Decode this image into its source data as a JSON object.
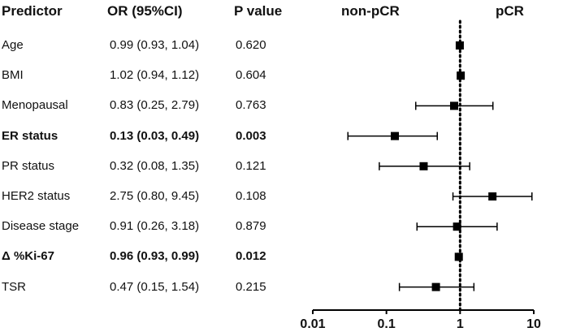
{
  "headers": {
    "predictor": "Predictor",
    "or": "OR (95%CI)",
    "p": "P value",
    "left_label": "non-pCR",
    "right_label": "pCR"
  },
  "chart_data": {
    "type": "scatter",
    "subtype": "forest-plot",
    "x_scale": "log",
    "xlim": [
      0.01,
      10
    ],
    "reference_line": 1,
    "reference_line_style": "dotted",
    "x_ticks": [
      0.01,
      0.1,
      1,
      10
    ],
    "x_tick_labels": [
      "0.01",
      "0.1",
      "1",
      "10"
    ],
    "grid": false,
    "rows": [
      {
        "predictor": "Age",
        "or_text": "0.99 (0.93, 1.04)",
        "p_text": "0.620",
        "or": 0.99,
        "lo": 0.93,
        "hi": 1.04,
        "bold": false
      },
      {
        "predictor": "BMI",
        "or_text": "1.02 (0.94, 1.12)",
        "p_text": "0.604",
        "or": 1.02,
        "lo": 0.94,
        "hi": 1.12,
        "bold": false
      },
      {
        "predictor": "Menopausal",
        "or_text": "0.83 (0.25, 2.79)",
        "p_text": "0.763",
        "or": 0.83,
        "lo": 0.25,
        "hi": 2.79,
        "bold": false
      },
      {
        "predictor": "ER status",
        "or_text": "0.13 (0.03, 0.49)",
        "p_text": "0.003",
        "or": 0.13,
        "lo": 0.03,
        "hi": 0.49,
        "bold": true
      },
      {
        "predictor": "PR status",
        "or_text": "0.32 (0.08, 1.35)",
        "p_text": "0.121",
        "or": 0.32,
        "lo": 0.08,
        "hi": 1.35,
        "bold": false
      },
      {
        "predictor": "HER2 status",
        "or_text": "2.75 (0.80, 9.45)",
        "p_text": "0.108",
        "or": 2.75,
        "lo": 0.8,
        "hi": 9.45,
        "bold": false
      },
      {
        "predictor": "Disease stage",
        "or_text": "0.91 (0.26, 3.18)",
        "p_text": "0.879",
        "or": 0.91,
        "lo": 0.26,
        "hi": 3.18,
        "bold": false
      },
      {
        "predictor": "Δ %Ki-67",
        "or_text": "0.96 (0.93, 0.99)",
        "p_text": "0.012",
        "or": 0.96,
        "lo": 0.93,
        "hi": 0.99,
        "bold": true
      },
      {
        "predictor": "TSR",
        "or_text": "0.47 (0.15, 1.54)",
        "p_text": "0.215",
        "or": 0.47,
        "lo": 0.15,
        "hi": 1.54,
        "bold": false
      }
    ]
  }
}
